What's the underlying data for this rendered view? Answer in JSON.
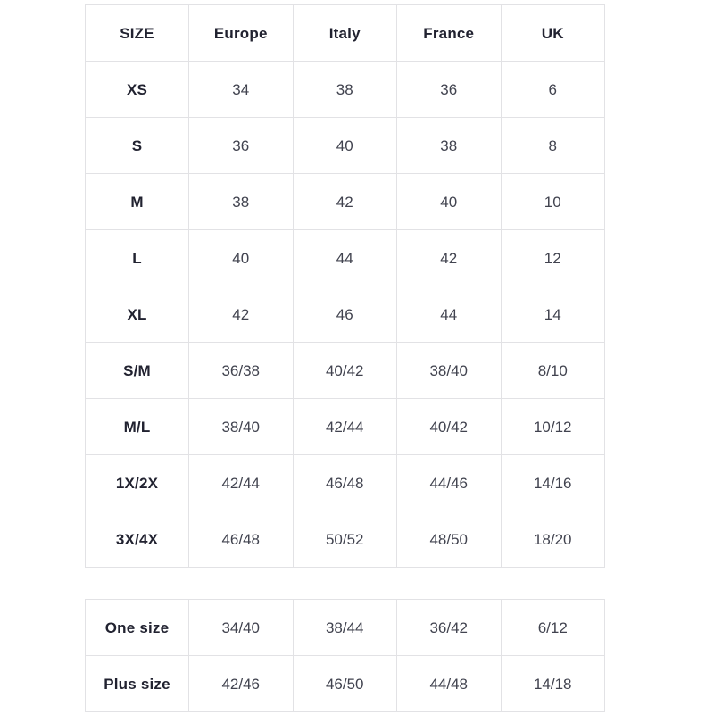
{
  "page": {
    "background": "#ffffff"
  },
  "colors": {
    "border": "#e2e2e5",
    "header_text": "#212230",
    "value_text": "#41434f"
  },
  "size_table": {
    "headers": [
      "SIZE",
      "Europe",
      "Italy",
      "France",
      "UK"
    ],
    "rows": [
      {
        "size": "XS",
        "values": [
          "34",
          "38",
          "36",
          "6"
        ]
      },
      {
        "size": "S",
        "values": [
          "36",
          "40",
          "38",
          "8"
        ]
      },
      {
        "size": "M",
        "values": [
          "38",
          "42",
          "40",
          "10"
        ]
      },
      {
        "size": "L",
        "values": [
          "40",
          "44",
          "42",
          "12"
        ]
      },
      {
        "size": "XL",
        "values": [
          "42",
          "46",
          "44",
          "14"
        ]
      },
      {
        "size": "S/M",
        "values": [
          "36/38",
          "40/42",
          "38/40",
          "8/10"
        ]
      },
      {
        "size": "M/L",
        "values": [
          "38/40",
          "42/44",
          "40/42",
          "10/12"
        ]
      },
      {
        "size": "1X/2X",
        "values": [
          "42/44",
          "46/48",
          "44/46",
          "14/16"
        ]
      },
      {
        "size": "3X/4X",
        "values": [
          "46/48",
          "50/52",
          "48/50",
          "18/20"
        ]
      }
    ]
  },
  "extra_table": {
    "rows": [
      {
        "size": "One size",
        "values": [
          "34/40",
          "38/44",
          "36/42",
          "6/12"
        ]
      },
      {
        "size": "Plus size",
        "values": [
          "42/46",
          "46/50",
          "44/48",
          "14/18"
        ]
      }
    ]
  }
}
